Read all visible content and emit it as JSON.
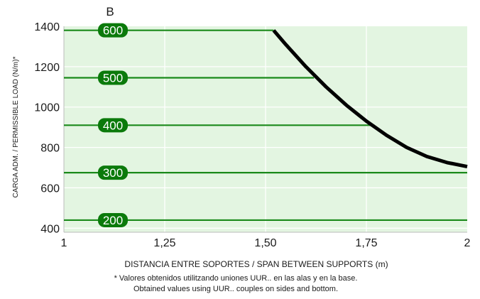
{
  "chart_data": {
    "type": "line",
    "panel_label": "B",
    "xlabel": "DISTANCIA ENTRE SOPORTES / SPAN BETWEEN SUPPORTS (m)",
    "ylabel": "CARGA ADM. / PERMISSIBLE LOAD (N/m)*",
    "xlim": [
      1,
      2
    ],
    "ylim": [
      380,
      1400
    ],
    "x_ticks": [
      {
        "value": 1,
        "label": "1"
      },
      {
        "value": 1.25,
        "label": "1,25"
      },
      {
        "value": 1.5,
        "label": "1,50"
      },
      {
        "value": 1.75,
        "label": "1,75"
      },
      {
        "value": 2,
        "label": "2"
      }
    ],
    "y_ticks": [
      {
        "value": 400,
        "label": "400"
      },
      {
        "value": 600,
        "label": "600"
      },
      {
        "value": 800,
        "label": "800"
      },
      {
        "value": 1000,
        "label": "1000"
      },
      {
        "value": 1200,
        "label": "1200"
      },
      {
        "value": 1400,
        "label": "1400"
      }
    ],
    "grid": true,
    "background_color": "#e3f5e1",
    "reference_lines": [
      {
        "label": "600",
        "y": 1380,
        "x_end": 1.52
      },
      {
        "label": "500",
        "y": 1145,
        "x_end": 1.62
      },
      {
        "label": "400",
        "y": 910,
        "x_end": 1.77
      },
      {
        "label": "300",
        "y": 675,
        "x_end": 2.0
      },
      {
        "label": "200",
        "y": 440,
        "x_end": 2.0
      }
    ],
    "reference_line_color": "#1a8a1a",
    "badge_color": "#0b7a0b",
    "series": [
      {
        "color": "#000000",
        "x": [
          1.52,
          1.55,
          1.6,
          1.65,
          1.7,
          1.75,
          1.8,
          1.85,
          1.9,
          1.95,
          2.0
        ],
        "y": [
          1380,
          1310,
          1200,
          1100,
          1010,
          930,
          860,
          800,
          755,
          725,
          705
        ]
      }
    ]
  },
  "footnotes": {
    "line1": "* Valores obtenidos utilitzando uniones UUR.. en las alas y en la base.",
    "line2": "Obtained values using UUR.. couples on sides and bottom."
  }
}
